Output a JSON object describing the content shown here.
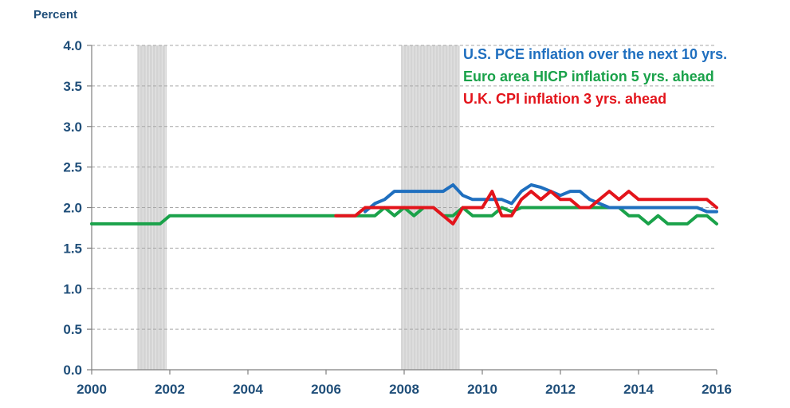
{
  "chart_data": {
    "type": "line",
    "ylabel": "Percent",
    "xlabel": "",
    "xlim": [
      2000,
      2016
    ],
    "ylim": [
      0,
      4.0
    ],
    "x_ticks": [
      "2000",
      "2002",
      "2004",
      "2006",
      "2008",
      "2010",
      "2012",
      "2014",
      "2016"
    ],
    "y_ticks": [
      "0.0",
      "0.5",
      "1.0",
      "1.5",
      "2.0",
      "2.5",
      "3.0",
      "3.5",
      "4.0"
    ],
    "grid": "horizontal dashed",
    "legend_placement": "top-right",
    "recession_shading": [
      [
        2001.17,
        2001.92
      ],
      [
        2007.92,
        2009.42
      ]
    ],
    "series": [
      {
        "name": "U.S. PCE inflation over the next 10 yrs.",
        "color": "#1f6fbf",
        "x": [
          2007.0,
          2007.25,
          2007.5,
          2007.75,
          2008.0,
          2008.25,
          2008.5,
          2008.75,
          2009.0,
          2009.25,
          2009.5,
          2009.75,
          2010.0,
          2010.25,
          2010.5,
          2010.75,
          2011.0,
          2011.25,
          2011.5,
          2011.75,
          2012.0,
          2012.25,
          2012.5,
          2012.75,
          2013.0,
          2013.25,
          2013.5,
          2013.75,
          2014.0,
          2014.25,
          2014.5,
          2014.75,
          2015.0,
          2015.25,
          2015.5,
          2015.75,
          2016.0
        ],
        "y": [
          1.95,
          2.05,
          2.1,
          2.2,
          2.2,
          2.2,
          2.2,
          2.2,
          2.2,
          2.28,
          2.15,
          2.1,
          2.1,
          2.1,
          2.1,
          2.05,
          2.2,
          2.28,
          2.25,
          2.2,
          2.15,
          2.2,
          2.2,
          2.1,
          2.05,
          2.0,
          2.0,
          2.0,
          2.0,
          2.0,
          2.0,
          2.0,
          2.0,
          2.0,
          2.0,
          1.95,
          1.95
        ]
      },
      {
        "name": "Euro area HICP inflation 5 yrs. ahead",
        "color": "#1aa24a",
        "x": [
          2000.0,
          2000.25,
          2000.5,
          2000.75,
          2001.0,
          2001.25,
          2001.5,
          2001.75,
          2002.0,
          2003.0,
          2004.0,
          2005.0,
          2006.0,
          2007.0,
          2007.25,
          2007.5,
          2007.75,
          2008.0,
          2008.25,
          2008.5,
          2008.75,
          2009.0,
          2009.25,
          2009.5,
          2009.75,
          2010.0,
          2010.25,
          2010.5,
          2010.75,
          2011.0,
          2011.5,
          2012.0,
          2012.5,
          2013.0,
          2013.25,
          2013.5,
          2013.75,
          2014.0,
          2014.25,
          2014.5,
          2014.75,
          2015.0,
          2015.25,
          2015.5,
          2015.75,
          2016.0
        ],
        "y": [
          1.8,
          1.8,
          1.8,
          1.8,
          1.8,
          1.8,
          1.8,
          1.8,
          1.9,
          1.9,
          1.9,
          1.9,
          1.9,
          1.9,
          1.9,
          2.0,
          1.9,
          2.0,
          1.9,
          2.0,
          2.0,
          1.9,
          1.9,
          2.0,
          1.9,
          1.9,
          1.9,
          2.0,
          1.95,
          2.0,
          2.0,
          2.0,
          2.0,
          2.0,
          2.0,
          2.0,
          1.9,
          1.9,
          1.8,
          1.9,
          1.8,
          1.8,
          1.8,
          1.9,
          1.9,
          1.8
        ]
      },
      {
        "name": "U.K. CPI inflation 3 yrs. ahead",
        "color": "#e3141b",
        "x": [
          2006.25,
          2006.5,
          2006.75,
          2007.0,
          2007.25,
          2007.5,
          2007.75,
          2008.0,
          2008.25,
          2008.5,
          2008.75,
          2009.0,
          2009.25,
          2009.5,
          2009.75,
          2010.0,
          2010.25,
          2010.5,
          2010.75,
          2011.0,
          2011.25,
          2011.5,
          2011.75,
          2012.0,
          2012.25,
          2012.5,
          2012.75,
          2013.0,
          2013.25,
          2013.5,
          2013.75,
          2014.0,
          2014.5,
          2015.0,
          2015.5,
          2015.75,
          2016.0
        ],
        "y": [
          1.9,
          1.9,
          1.9,
          2.0,
          2.0,
          2.0,
          2.0,
          2.0,
          2.0,
          2.0,
          2.0,
          1.9,
          1.8,
          2.0,
          2.0,
          2.0,
          2.2,
          1.9,
          1.9,
          2.1,
          2.2,
          2.1,
          2.2,
          2.1,
          2.1,
          2.0,
          2.0,
          2.1,
          2.2,
          2.1,
          2.2,
          2.1,
          2.1,
          2.1,
          2.1,
          2.1,
          2.0
        ]
      }
    ]
  }
}
